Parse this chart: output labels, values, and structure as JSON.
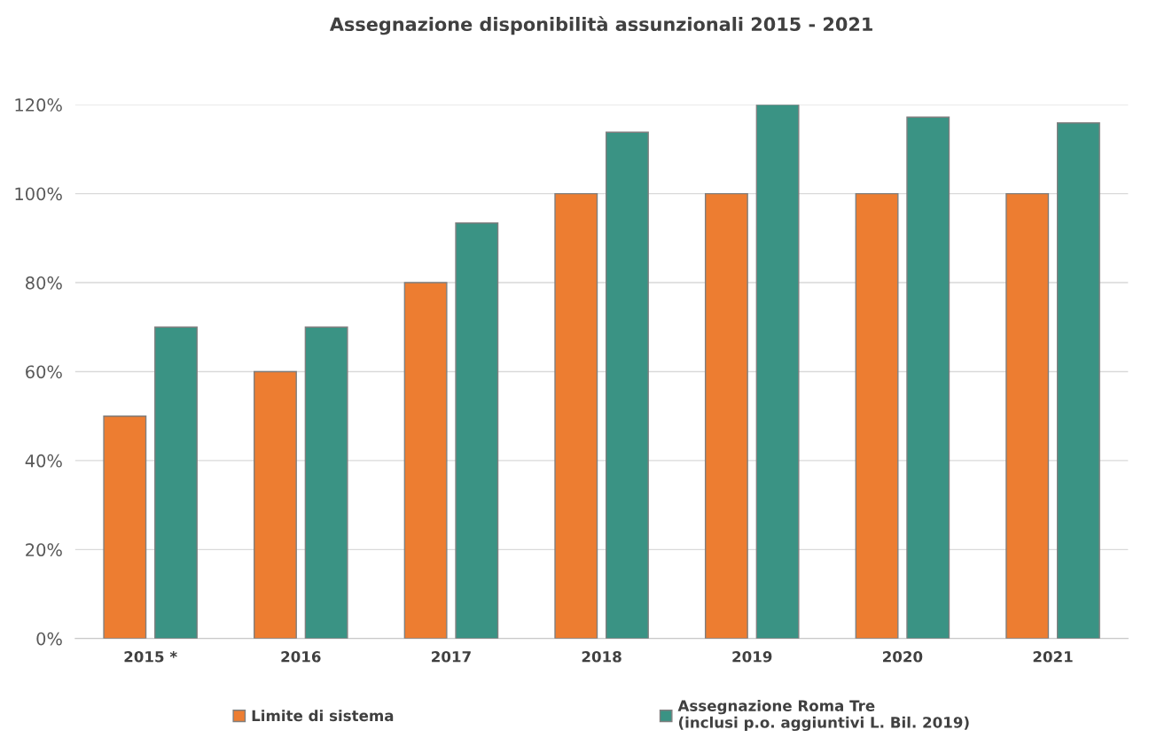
{
  "chart_data": {
    "type": "bar",
    "title": "Assegnazione disponibilità assunzionali 2015 - 2021",
    "categories": [
      "2015 *",
      "2016",
      "2017",
      "2018",
      "2019",
      "2020",
      "2021"
    ],
    "series": [
      {
        "name": "Limite di sistema",
        "color": "#ed7d31",
        "values": [
          50,
          60,
          80,
          100,
          100,
          100,
          100
        ]
      },
      {
        "name": "Assegnazione Roma Tre\n(inclusi p.o. aggiuntivi L. Bil. 2019)",
        "color": "#3a9384",
        "values": [
          70,
          70,
          93.4,
          113.8,
          120,
          117.2,
          115.9
        ]
      }
    ],
    "ylim": [
      0,
      120
    ],
    "yticks": [
      {
        "value": 0,
        "label": "0%"
      },
      {
        "value": 20,
        "label": "20%"
      },
      {
        "value": 40,
        "label": "40%"
      },
      {
        "value": 60,
        "label": "60%"
      },
      {
        "value": 80,
        "label": "80%"
      },
      {
        "value": 100,
        "label": "100%"
      },
      {
        "value": 120,
        "label": "120%"
      }
    ],
    "grid": "y",
    "legend": "bottom"
  }
}
